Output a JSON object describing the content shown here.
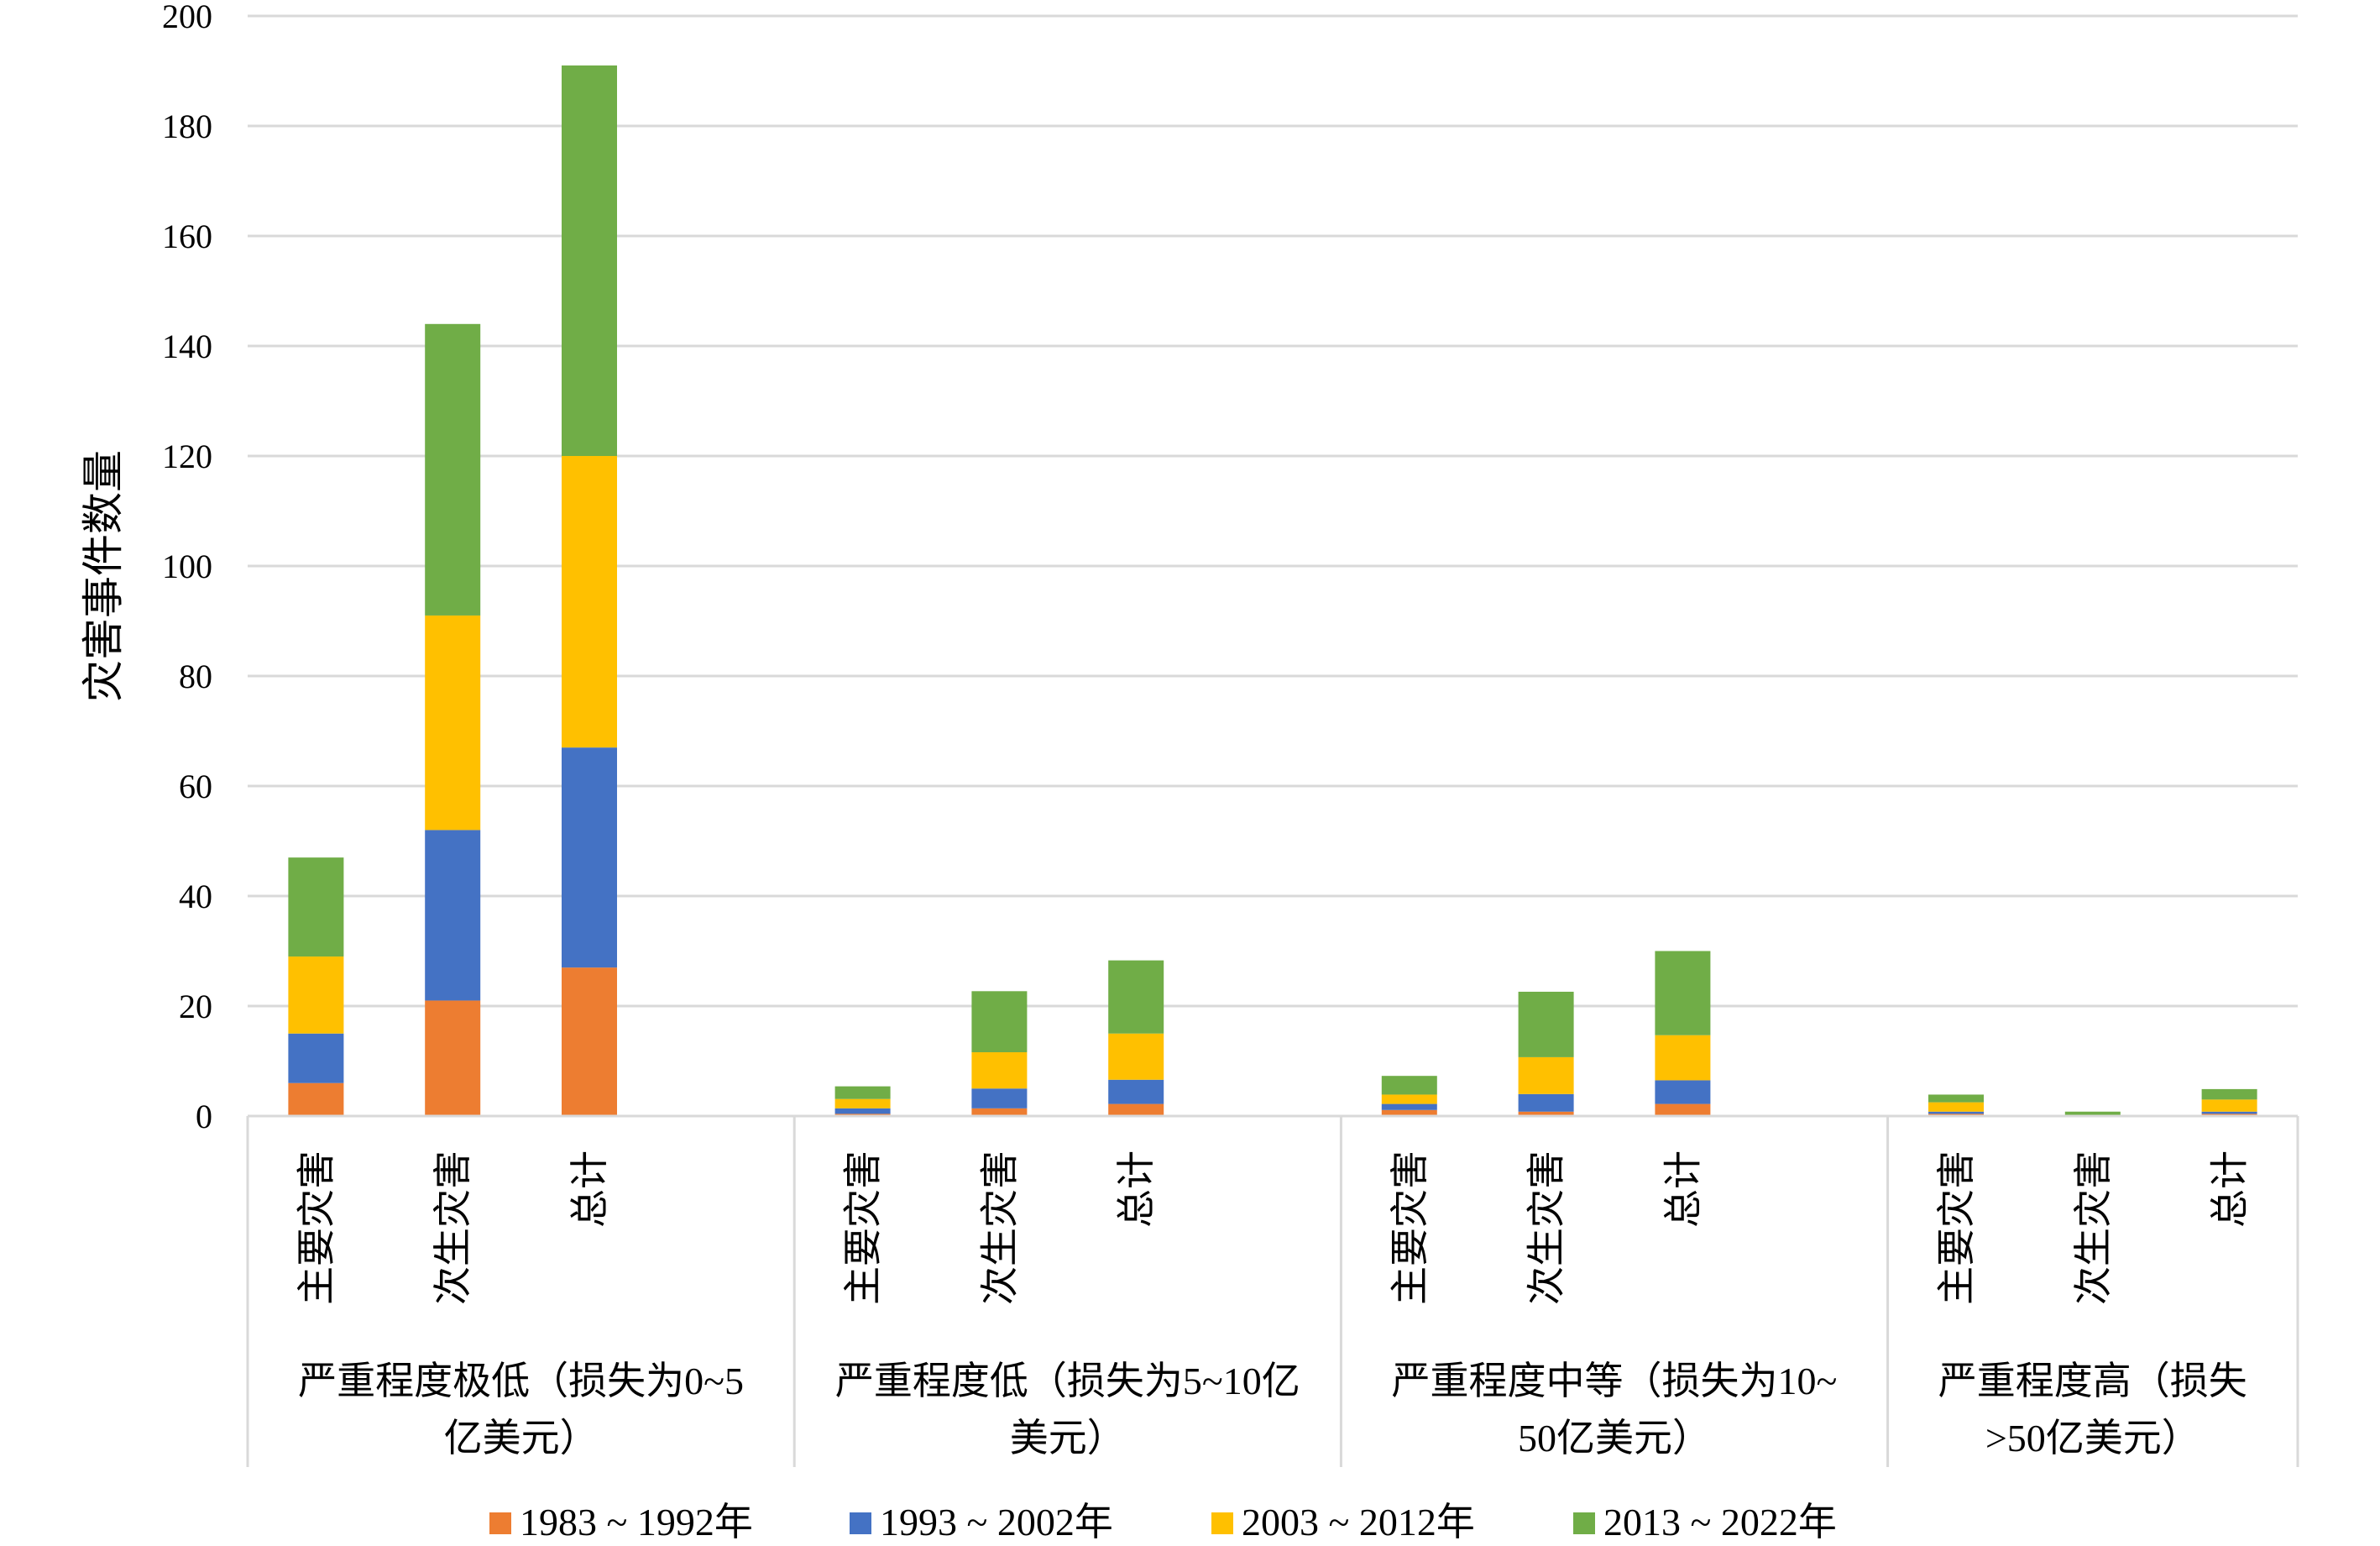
{
  "chart_data": {
    "type": "bar",
    "stacked": true,
    "ylabel": "灾害事件数量",
    "ylim": [
      0,
      200
    ],
    "yticks": [
      "0",
      "20",
      "40",
      "60",
      "80",
      "100",
      "120",
      "140",
      "160",
      "180",
      "200"
    ],
    "grid": true,
    "legend_position": "bottom",
    "groups": [
      {
        "label_lines": [
          "严重程度极低（损失为0~5",
          "亿美元）"
        ],
        "categories": [
          "主要灾害",
          "次生灾害",
          "总计"
        ]
      },
      {
        "label_lines": [
          "严重程度低（损失为5~10亿",
          "美元）"
        ],
        "categories": [
          "主要灾害",
          "次生灾害",
          "总计"
        ]
      },
      {
        "label_lines": [
          "严重程度中等（损失为10~",
          "50亿美元）"
        ],
        "categories": [
          "主要灾害",
          "次生灾害",
          "总计"
        ]
      },
      {
        "label_lines": [
          "严重程度高（损失",
          ">50亿美元）"
        ],
        "categories": [
          "主要灾害",
          "次生灾害",
          "总计"
        ]
      }
    ],
    "series": [
      {
        "name": "1983 ~ 1992年",
        "color": "#ED7D31",
        "values": [
          [
            6,
            21,
            27
          ],
          [
            0.4,
            1.4,
            2.2
          ],
          [
            1.1,
            0.8,
            2.2
          ],
          [
            0.4,
            0,
            0.4
          ]
        ]
      },
      {
        "name": "1993 ~ 2002年",
        "color": "#4472C4",
        "values": [
          [
            9,
            31,
            40
          ],
          [
            1.0,
            3.6,
            4.4
          ],
          [
            1.1,
            3.2,
            4.3
          ],
          [
            0.4,
            0,
            0.4
          ]
        ]
      },
      {
        "name": "2003 ~ 2012年",
        "color": "#FFC000",
        "values": [
          [
            14,
            39,
            53
          ],
          [
            1.7,
            6.6,
            8.4
          ],
          [
            1.7,
            6.7,
            8.2
          ],
          [
            1.7,
            0.1,
            2.2
          ]
        ]
      },
      {
        "name": "2013 ~ 2022年",
        "color": "#70AD47",
        "values": [
          [
            18,
            53,
            71
          ],
          [
            2.3,
            11.1,
            13.3
          ],
          [
            3.4,
            11.9,
            15.3
          ],
          [
            1.4,
            0.7,
            1.9
          ]
        ]
      }
    ]
  }
}
